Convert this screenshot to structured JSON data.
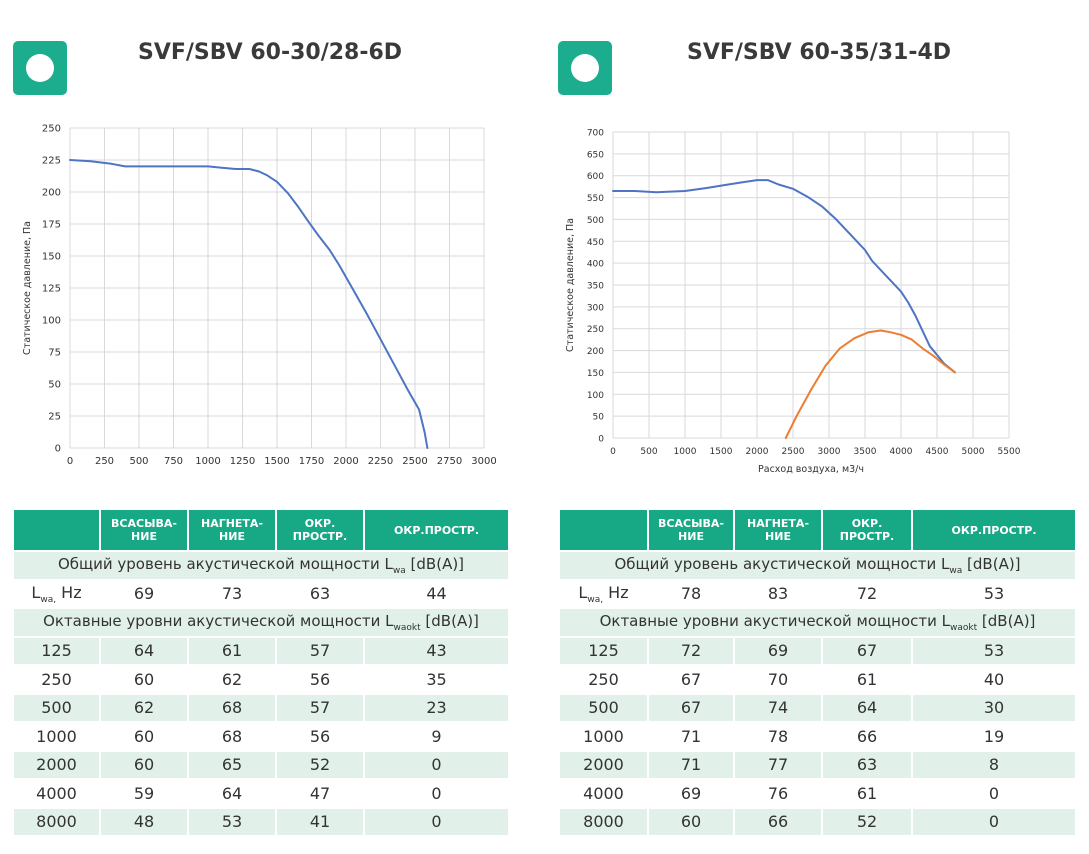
{
  "colors": {
    "accent": "#1cad8e",
    "table_header": "#17a886",
    "row_light": "#e1f1ea",
    "series_blue": "#4e74c4",
    "series_orange": "#ed7d31",
    "grid": "#d9d9d9"
  },
  "panels": [
    {
      "title": "SVF/SBV 60-30/28-6D",
      "chart_data": {
        "type": "line",
        "title": "",
        "xlabel": "",
        "ylabel": "Статическое давление, Па",
        "xlim": [
          0,
          3000
        ],
        "ylim": [
          0,
          250
        ],
        "xticks": [
          0,
          250,
          500,
          750,
          1000,
          1250,
          1500,
          1750,
          2000,
          2250,
          2500,
          2750,
          3000
        ],
        "yticks": [
          0,
          25,
          50,
          75,
          100,
          125,
          150,
          175,
          200,
          225,
          250
        ],
        "grid": true,
        "series": [
          {
            "name": "",
            "color": "#4e74c4",
            "x": [
              0,
              150,
              300,
              400,
              500,
              700,
              900,
              1000,
              1100,
              1200,
              1300,
              1370,
              1430,
              1500,
              1580,
              1650,
              1720,
              1800,
              1880,
              1950,
              2050,
              2150,
              2250,
              2350,
              2450,
              2530,
              2570,
              2590
            ],
            "y": [
              225,
              224,
              222,
              220,
              220,
              220,
              220,
              220,
              219,
              218,
              218,
              216,
              213,
              208,
              199,
              189,
              178,
              166,
              155,
              143,
              124,
              105,
              85,
              65,
              45,
              30,
              12,
              0
            ]
          }
        ]
      },
      "table": {
        "headers": [
          "",
          "ВСАСЫВА-НИЕ",
          "НАГНЕТА-НИЕ",
          "ОКР. ПРОСТР.",
          "ОКР.ПРОСТР."
        ],
        "total_title": "Общий уровень акустической мощности L",
        "total_sub": "wa",
        "total_unit": " [dB(A)]",
        "lwa_main": "L",
        "lwa_sub": "wa,",
        "lwa_tail": " Hz",
        "lwa_values": [
          "69",
          "73",
          "63",
          "44"
        ],
        "octave_title": "Октавные уровни акустической мощности L",
        "octave_sub": "waokt",
        "octave_unit": " [dB(A)]",
        "rows": [
          [
            "125",
            "64",
            "61",
            "57",
            "43"
          ],
          [
            "250",
            "60",
            "62",
            "56",
            "35"
          ],
          [
            "500",
            "62",
            "68",
            "57",
            "23"
          ],
          [
            "1000",
            "60",
            "68",
            "56",
            "9"
          ],
          [
            "2000",
            "60",
            "65",
            "52",
            "0"
          ],
          [
            "4000",
            "59",
            "64",
            "47",
            "0"
          ],
          [
            "8000",
            "48",
            "53",
            "41",
            "0"
          ]
        ]
      }
    },
    {
      "title": "SVF/SBV 60-35/31-4D",
      "chart_data": {
        "type": "line",
        "title": "",
        "xlabel": "Расход воздуха, м3/ч",
        "ylabel": "Статическое давление, Па",
        "xlim": [
          0,
          5500
        ],
        "ylim": [
          0,
          700
        ],
        "xticks": [
          0,
          500,
          1000,
          1500,
          2000,
          2500,
          3000,
          3500,
          4000,
          4500,
          5000,
          5500
        ],
        "yticks": [
          0,
          50,
          100,
          150,
          200,
          250,
          300,
          350,
          400,
          450,
          500,
          550,
          600,
          650,
          700
        ],
        "grid": true,
        "series": [
          {
            "name": "",
            "color": "#4e74c4",
            "x": [
              0,
              300,
              600,
              1000,
              1300,
              1600,
              1800,
              2000,
              2150,
              2300,
              2500,
              2700,
              2900,
              3100,
              3300,
              3500,
              3600,
              3800,
              4000,
              4100,
              4200,
              4300,
              4400,
              4500,
              4600,
              4750
            ],
            "y": [
              565,
              565,
              562,
              565,
              572,
              580,
              585,
              590,
              590,
              580,
              570,
              552,
              530,
              500,
              465,
              430,
              405,
              370,
              335,
              310,
              280,
              245,
              210,
              190,
              170,
              150
            ]
          },
          {
            "name": "",
            "color": "#ed7d31",
            "x": [
              2400,
              2550,
              2750,
              2950,
              3150,
              3350,
              3550,
              3720,
              3850,
              4000,
              4150,
              4300,
              4450,
              4600,
              4750
            ],
            "y": [
              0,
              50,
              110,
              165,
              205,
              228,
              242,
              246,
              242,
              236,
              225,
              205,
              188,
              168,
              150
            ]
          }
        ]
      },
      "table": {
        "headers": [
          "",
          "ВСАСЫВА-НИЕ",
          "НАГНЕТА-НИЕ",
          "ОКР. ПРОСТР.",
          "ОКР.ПРОСТР."
        ],
        "total_title": "Общий уровень акустической мощности L",
        "total_sub": "wa",
        "total_unit": " [dB(A)]",
        "lwa_main": "L",
        "lwa_sub": "wa,",
        "lwa_tail": " Hz",
        "lwa_values": [
          "78",
          "83",
          "72",
          "53"
        ],
        "octave_title": "Октавные уровни акустической мощности L",
        "octave_sub": "waokt",
        "octave_unit": " [dB(A)]",
        "rows": [
          [
            "125",
            "72",
            "69",
            "67",
            "53"
          ],
          [
            "250",
            "67",
            "70",
            "61",
            "40"
          ],
          [
            "500",
            "67",
            "74",
            "64",
            "30"
          ],
          [
            "1000",
            "71",
            "78",
            "66",
            "19"
          ],
          [
            "2000",
            "71",
            "77",
            "63",
            "8"
          ],
          [
            "4000",
            "69",
            "76",
            "61",
            "0"
          ],
          [
            "8000",
            "60",
            "66",
            "52",
            "0"
          ]
        ]
      }
    }
  ]
}
